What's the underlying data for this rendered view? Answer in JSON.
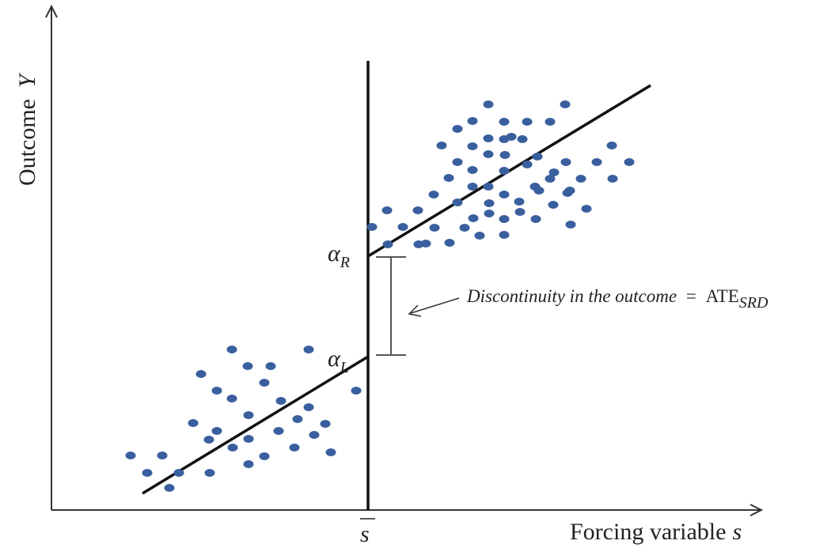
{
  "y_axis_label": "Outcome",
  "y_axis_symbol": "Y",
  "x_axis_label": "Forcing variable",
  "x_axis_symbol": "s",
  "threshold_label": "s",
  "alpha_R": {
    "symbol": "α",
    "subscript": "R"
  },
  "alpha_L": {
    "symbol": "α",
    "subscript": "L"
  },
  "annotation": {
    "text": "Discontinuity in the outcome",
    "equals": "=",
    "ate": "ATE",
    "ate_subscript": "SRD"
  },
  "colors": {
    "dot": "#3a5f9e",
    "line": "#111111",
    "axis": "#333333",
    "bracket": "#555555"
  }
}
